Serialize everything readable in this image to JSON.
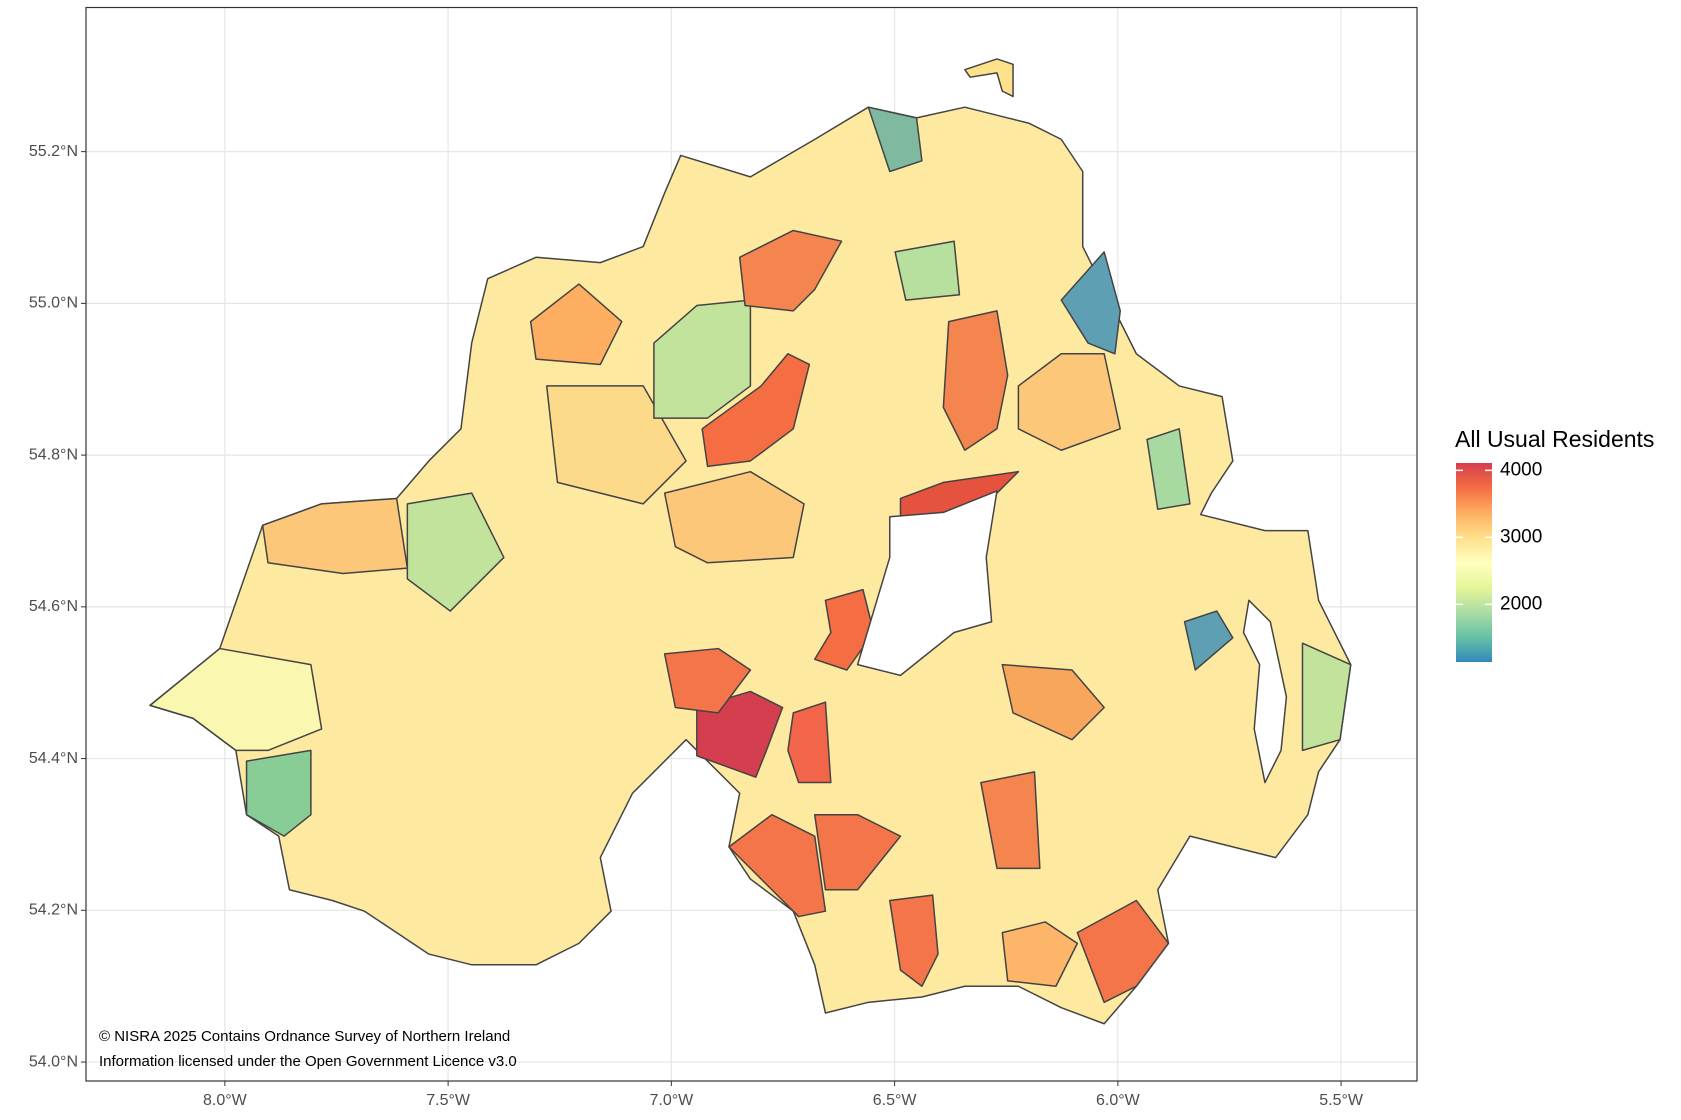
{
  "chart_data": {
    "type": "choropleth",
    "xlim": [
      -8.311,
      -5.33
    ],
    "ylim": [
      53.975,
      55.39
    ],
    "xticks": [
      {
        "value": -8.0,
        "label": "8.0°W"
      },
      {
        "value": -7.5,
        "label": "7.5°W"
      },
      {
        "value": -7.0,
        "label": "7.0°W"
      },
      {
        "value": -6.5,
        "label": "6.5°W"
      },
      {
        "value": -6.0,
        "label": "6.0°W"
      },
      {
        "value": -5.5,
        "label": "5.5°W"
      }
    ],
    "yticks": [
      {
        "value": 54.0,
        "label": "54.0°N"
      },
      {
        "value": 54.2,
        "label": "54.2°N"
      },
      {
        "value": 54.4,
        "label": "54.4°N"
      },
      {
        "value": 54.6,
        "label": "54.6°N"
      },
      {
        "value": 54.8,
        "label": "54.8°N"
      },
      {
        "value": 55.0,
        "label": "55.0°N"
      },
      {
        "value": 55.2,
        "label": "55.2°N"
      }
    ],
    "grid": true,
    "legend": {
      "title": "All Usual Residents",
      "lim": [
        1140,
        4110
      ],
      "ticks": [
        2000,
        3000,
        4000
      ],
      "colors": [
        "#3288bd",
        "#66c2a5",
        "#abdda4",
        "#e6f598",
        "#ffffbf",
        "#fee08b",
        "#fdae61",
        "#f46d43",
        "#d53e4f"
      ]
    },
    "attribution": [
      "© NISRA 2025 Contains Ordnance Survey of Northern Ireland",
      "Information licensed under the Open Government Licence v3.0"
    ]
  }
}
